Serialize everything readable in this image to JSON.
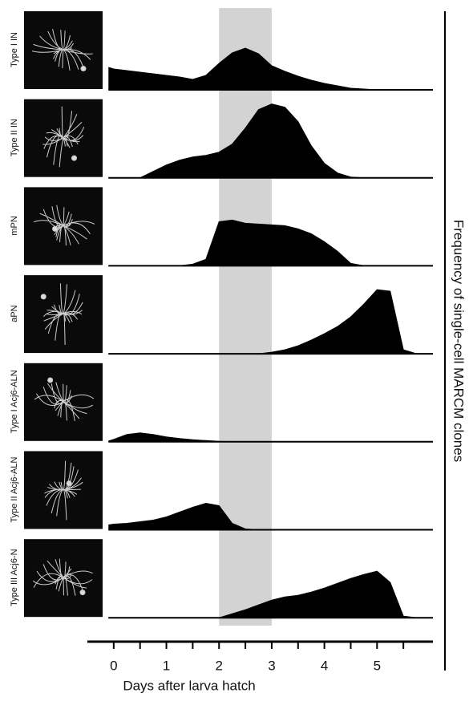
{
  "chart_data": {
    "type": "ridgeline",
    "xlabel": "Days after larva hatch",
    "ylabel": "Frequency of single-cell MARCM clones",
    "x": [
      -0.1,
      0,
      0.25,
      0.5,
      0.75,
      1,
      1.25,
      1.5,
      1.75,
      2,
      2.25,
      2.5,
      2.75,
      3,
      3.25,
      3.5,
      3.75,
      4,
      4.25,
      4.5,
      4.75,
      5,
      5.25,
      5.5,
      5.75
    ],
    "series": [
      {
        "name": "Type I IN",
        "color": "#000000",
        "values": [
          28,
          26,
          24,
          22,
          20,
          18,
          16,
          13,
          18,
          33,
          46,
          52,
          45,
          30,
          23,
          17,
          12,
          8,
          5,
          2,
          1,
          0,
          0,
          0,
          0
        ]
      },
      {
        "name": "Type II IN",
        "color": "#000000",
        "values": [
          0,
          0,
          0,
          0,
          8,
          16,
          22,
          26,
          28,
          32,
          42,
          62,
          85,
          92,
          88,
          70,
          40,
          18,
          6,
          1,
          0,
          0,
          0,
          0,
          0
        ]
      },
      {
        "name": "mPN",
        "color": "#000000",
        "values": [
          0,
          0,
          0,
          0,
          0,
          0,
          0,
          2,
          8,
          55,
          57,
          53,
          52,
          51,
          50,
          46,
          40,
          30,
          18,
          3,
          0,
          0,
          0,
          0,
          0
        ]
      },
      {
        "name": "aPN",
        "color": "#000000",
        "values": [
          0,
          0,
          0,
          0,
          0,
          0,
          0,
          0,
          0,
          0,
          0,
          0,
          0,
          2,
          5,
          10,
          17,
          25,
          34,
          46,
          62,
          80,
          78,
          5,
          0
        ]
      },
      {
        "name": "Type I Acj6-ALN",
        "color": "#000000",
        "values": [
          1,
          3,
          9,
          11,
          9,
          6,
          4,
          2.5,
          1.5,
          0.5,
          0,
          0,
          0,
          0,
          0,
          0,
          0,
          0,
          0,
          0,
          0,
          0,
          0,
          0,
          0
        ]
      },
      {
        "name": "Type II Acj6-ALN",
        "color": "#000000",
        "values": [
          6,
          7,
          8,
          10,
          12,
          16,
          22,
          28,
          33,
          30,
          8,
          1,
          0,
          0,
          0,
          0,
          0,
          0,
          0,
          0,
          0,
          0,
          0,
          0,
          0
        ]
      },
      {
        "name": "Type III Acj6-N",
        "color": "#000000",
        "values": [
          0,
          0,
          0,
          0,
          0,
          0,
          0,
          0,
          0,
          0,
          5,
          10,
          16,
          22,
          26,
          28,
          32,
          37,
          43,
          49,
          54,
          58,
          44,
          2,
          0
        ]
      }
    ],
    "xlim": [
      -0.5,
      6
    ],
    "xticks": [
      0,
      1,
      2,
      3,
      4,
      5
    ],
    "xminor": [
      0.5,
      1.5,
      2.5,
      3.5,
      4.5,
      5.5
    ],
    "ylim": [
      0,
      100
    ],
    "highlight": [
      2,
      3
    ],
    "highlight_color": "#d3d3d3"
  }
}
